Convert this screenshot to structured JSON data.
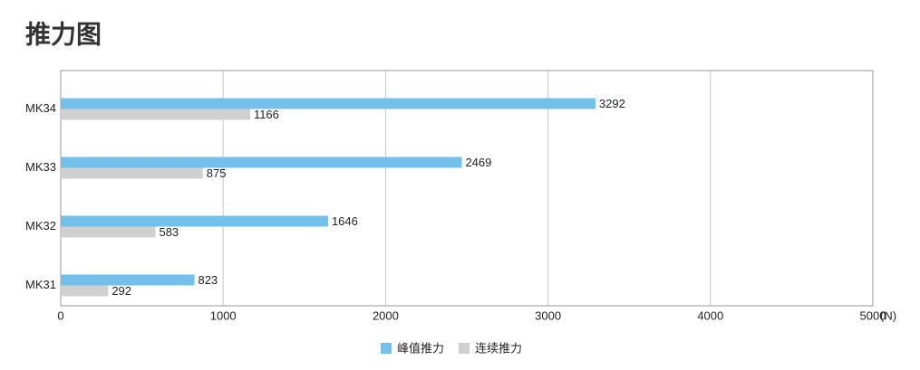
{
  "chart_data": {
    "type": "hbar",
    "title": "推力图",
    "x_unit": "(N)",
    "categories": [
      "MK34",
      "MK33",
      "MK32",
      "MK31"
    ],
    "series": [
      {
        "name": "峰值推力",
        "color": "#74c0ec",
        "values": [
          3292,
          2469,
          1646,
          823
        ]
      },
      {
        "name": "连续推力",
        "color": "#d0d0d0",
        "values": [
          1166,
          875,
          583,
          292
        ]
      }
    ],
    "xlim": [
      0,
      5000
    ],
    "xticks": [
      0,
      1000,
      2000,
      3000,
      4000,
      5000
    ],
    "grid": true
  }
}
